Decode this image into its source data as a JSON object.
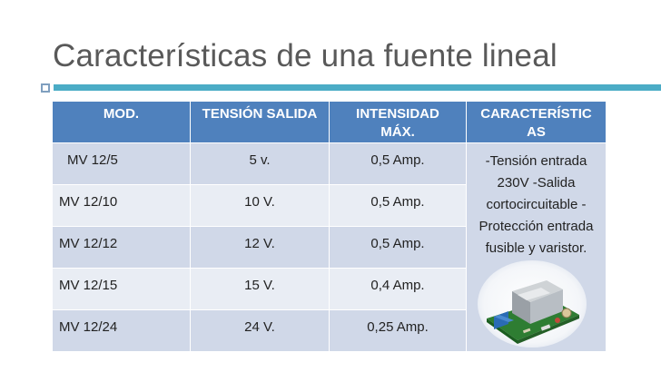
{
  "title": "Características de una fuente lineal",
  "table": {
    "headers": [
      "MOD.",
      "TENSIÓN SALIDA",
      "INTENSIDAD MÁX.",
      "CARACTERÍSTICAS"
    ],
    "header_display": [
      "MOD.",
      "TENSIÓN SALIDA",
      "INTENSIDAD\nMÁX.",
      "CARACTERÍSTIC\nAS"
    ],
    "rows": [
      [
        "MV 12/5",
        "5 v.",
        "0,5 Amp."
      ],
      [
        "MV 12/10",
        "10 V.",
        "0,5 Amp."
      ],
      [
        "MV 12/12",
        "12 V.",
        "0,5 Amp."
      ],
      [
        "MV 12/15",
        "15 V.",
        "0,4 Amp."
      ],
      [
        "MV 12/24",
        "24 V.",
        "0,25 Amp."
      ]
    ],
    "features": "-Tensión entrada 230V -Salida cortocircuitable -Protección entrada fusible y varistor."
  },
  "colors": {
    "header_bg": "#4f81bd",
    "row_dark": "#d0d8e8",
    "row_light": "#e9edf4",
    "accent_bar": "#4bacc6",
    "title": "#595959"
  },
  "icons": [
    "power-supply-module-photo"
  ]
}
